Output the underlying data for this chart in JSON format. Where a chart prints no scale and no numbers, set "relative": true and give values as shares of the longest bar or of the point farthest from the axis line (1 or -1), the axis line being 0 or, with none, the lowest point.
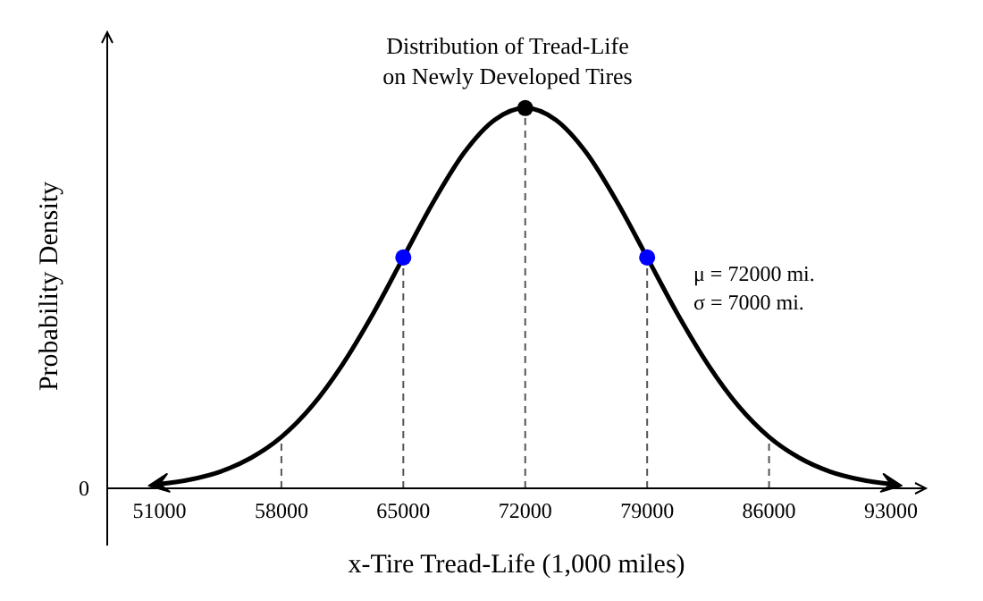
{
  "chart_data": {
    "type": "line",
    "title": "Distribution of Tread-Life\non Newly Developed Tires",
    "xlabel": "x-Tire Tread-Life (1,000 miles)",
    "ylabel": "Probability Density",
    "relative": true,
    "tick_labels": "x",
    "xlim": [
      48000,
      95000
    ],
    "xticks": [
      51000,
      58000,
      65000,
      72000,
      79000,
      86000,
      93000
    ],
    "series": [
      {
        "color": "#000000",
        "marker": "none",
        "line_style": "solid",
        "x": [
          51000,
          52750,
          54500,
          56250,
          58000,
          59750,
          61500,
          63250,
          65000,
          66750,
          68500,
          70250,
          72000,
          73750,
          75500,
          77250,
          79000,
          80750,
          82500,
          84250,
          86000,
          87750,
          89500,
          91250,
          93000
        ],
        "values": [
          0.011,
          0.023,
          0.044,
          0.08,
          0.135,
          0.216,
          0.325,
          0.458,
          0.607,
          0.755,
          0.883,
          0.969,
          1,
          0.969,
          0.883,
          0.755,
          0.607,
          0.458,
          0.325,
          0.216,
          0.135,
          0.08,
          0.044,
          0.023,
          0.011
        ]
      },
      {
        "type": "scatter",
        "marker": "circle",
        "x": [
          65000,
          72000,
          79000
        ],
        "values": [
          0.607,
          1,
          0.607
        ],
        "colors": [
          "#0000ff",
          "#000000",
          "#0000ff"
        ]
      }
    ],
    "ref_lines": [
      {
        "axis": "x",
        "value": 58000,
        "color": "#555555",
        "line_style": "dashed"
      },
      {
        "axis": "x",
        "value": 65000,
        "color": "#555555",
        "line_style": "dashed"
      },
      {
        "axis": "x",
        "value": 72000,
        "color": "#555555",
        "line_style": "dashed"
      },
      {
        "axis": "x",
        "value": 79000,
        "color": "#555555",
        "line_style": "dashed"
      },
      {
        "axis": "x",
        "value": 86000,
        "color": "#555555",
        "line_style": "dashed"
      }
    ],
    "annotations": [
      "0",
      "μ = 72000 mi.",
      "σ = 7000 mi."
    ]
  }
}
